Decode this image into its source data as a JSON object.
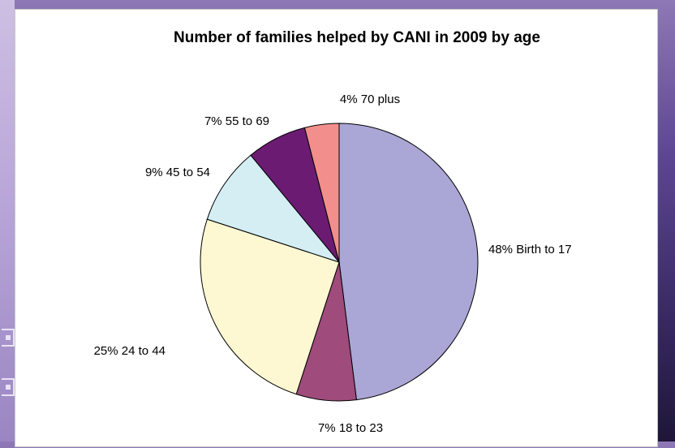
{
  "chart_data": {
    "type": "pie",
    "title": "Number of families helped by CANI in 2009 by age",
    "slices": [
      {
        "label": "48% Birth to 17",
        "value": 48,
        "color": "#aaa6d6"
      },
      {
        "label": "7% 18 to 23",
        "value": 7,
        "color": "#9f4b7b"
      },
      {
        "label": "25% 24 to 44",
        "value": 25,
        "color": "#fdf8d2"
      },
      {
        "label": "9% 45 to 54",
        "value": 9,
        "color": "#d4eef4"
      },
      {
        "label": "7% 55 to 69",
        "value": 7,
        "color": "#6b1c72"
      },
      {
        "label": "4% 70 plus",
        "value": 4,
        "color": "#f28f8c"
      }
    ]
  }
}
